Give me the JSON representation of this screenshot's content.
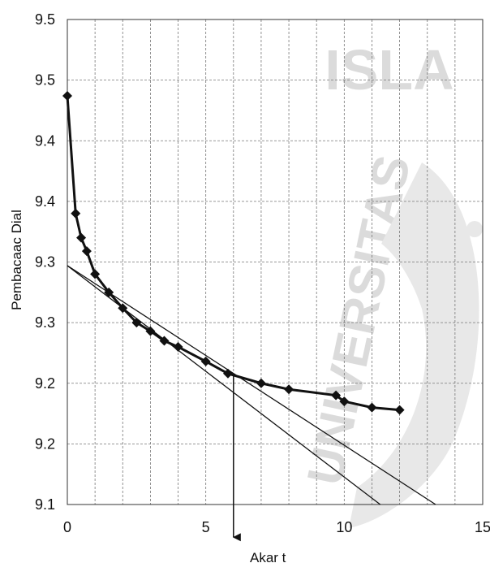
{
  "chart_data": {
    "type": "line",
    "title": "",
    "xlabel": "Akar t",
    "ylabel": "Pembacaac Dial",
    "xlim": [
      0,
      15
    ],
    "ylim": [
      9.1,
      9.5
    ],
    "x_ticks": [
      "0",
      "5",
      "10",
      "15"
    ],
    "x_tick_values": [
      0,
      5,
      10,
      15
    ],
    "y_ticks": [
      "9.1",
      "9.2",
      "9.2",
      "9.3",
      "9.3",
      "9.4",
      "9.4",
      "9.5",
      "9.5"
    ],
    "y_tick_values": [
      9.1,
      9.15,
      9.2,
      9.25,
      9.3,
      9.35,
      9.4,
      9.45,
      9.5
    ],
    "grid": true,
    "minor_x_grid_step": 1,
    "series": [
      {
        "name": "",
        "marker": "diamond",
        "color": "#111111",
        "x": [
          0,
          0.3,
          0.5,
          0.7,
          1.0,
          1.5,
          2.0,
          2.5,
          3.0,
          3.5,
          4.0,
          5.0,
          5.8,
          7.0,
          8.0,
          9.7,
          10.0,
          11.0,
          12.0
        ],
        "y": [
          9.437,
          9.34,
          9.32,
          9.309,
          9.29,
          9.275,
          9.262,
          9.25,
          9.243,
          9.235,
          9.23,
          9.218,
          9.208,
          9.2,
          9.195,
          9.19,
          9.185,
          9.18,
          9.178
        ]
      }
    ],
    "tangent_lines": [
      {
        "x": [
          0,
          13.3
        ],
        "y": [
          9.297,
          9.1
        ]
      },
      {
        "x": [
          0,
          11.3
        ],
        "y": [
          9.297,
          9.1
        ]
      }
    ],
    "annotation_arrow": {
      "x": 6.0,
      "y_from": 9.208,
      "y_to": 9.073,
      "label": "Akar t"
    },
    "watermark": {
      "text": "UNIVERSITAS ISLAM",
      "color": "#d8d8d8"
    }
  }
}
